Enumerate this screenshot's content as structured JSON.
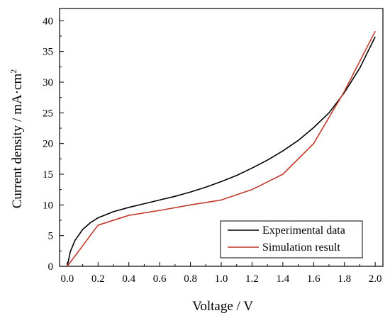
{
  "chart_data": {
    "type": "line",
    "xlabel": "Voltage / V",
    "ylabel": "Current density / mA·cm",
    "ylabel_superscript": "2",
    "xlim": [
      -0.05,
      2.05
    ],
    "ylim": [
      0,
      42
    ],
    "xticks": [
      "0.0",
      "0.2",
      "0.4",
      "0.6",
      "0.8",
      "1.0",
      "1.2",
      "1.4",
      "1.6",
      "1.8",
      "2.0"
    ],
    "yticks": [
      "0",
      "5",
      "10",
      "15",
      "20",
      "25",
      "30",
      "35",
      "40"
    ],
    "grid": false,
    "legend_position": "bottom-right",
    "series": [
      {
        "name": "Experimental data",
        "color": "#000000",
        "x": [
          0.0,
          0.02,
          0.05,
          0.1,
          0.15,
          0.2,
          0.3,
          0.4,
          0.5,
          0.6,
          0.7,
          0.8,
          0.9,
          1.0,
          1.1,
          1.2,
          1.3,
          1.4,
          1.5,
          1.6,
          1.7,
          1.8,
          1.9,
          2.0
        ],
        "y": [
          0.0,
          2.4,
          4.2,
          6.0,
          7.1,
          7.9,
          8.9,
          9.6,
          10.2,
          10.8,
          11.4,
          12.1,
          12.9,
          13.8,
          14.8,
          16.0,
          17.3,
          18.8,
          20.5,
          22.6,
          25.0,
          28.3,
          32.3,
          37.4
        ]
      },
      {
        "name": "Simulation result",
        "color": "#c0392b",
        "x": [
          0.0,
          0.2,
          0.4,
          0.6,
          0.8,
          1.0,
          1.2,
          1.4,
          1.6,
          1.8,
          2.0
        ],
        "y": [
          0.0,
          6.7,
          8.3,
          9.1,
          10.0,
          10.8,
          12.5,
          15.0,
          20.0,
          28.5,
          38.3
        ]
      }
    ]
  }
}
